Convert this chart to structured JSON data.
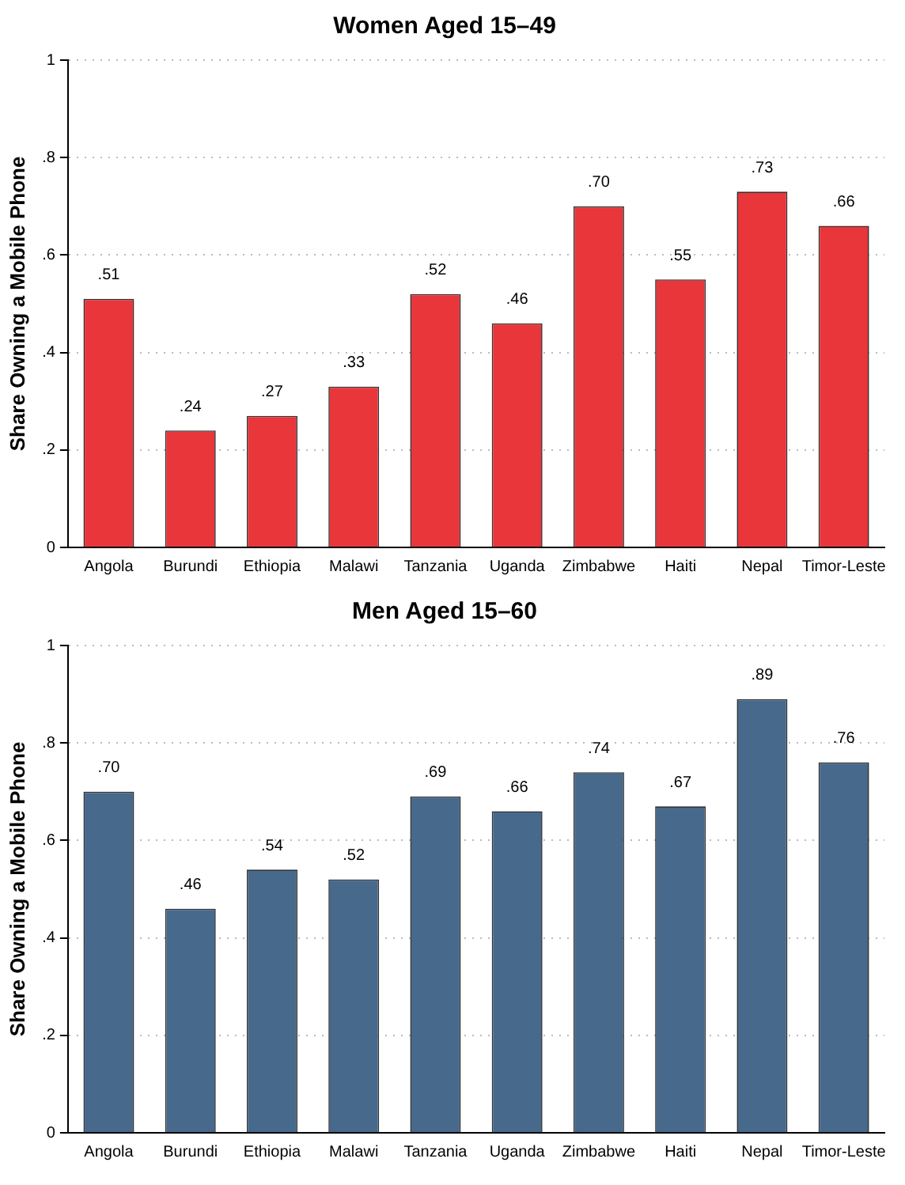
{
  "chart_data": [
    {
      "type": "bar",
      "title": "Women Aged 15–49",
      "ylabel": "Share Owning a Mobile Phone",
      "categories": [
        "Angola",
        "Burundi",
        "Ethiopia",
        "Malawi",
        "Tanzania",
        "Uganda",
        "Zimbabwe",
        "Haiti",
        "Nepal",
        "Timor-Leste"
      ],
      "color": "#e8363b",
      "values": [
        0.51,
        0.24,
        0.27,
        0.33,
        0.52,
        0.46,
        0.7,
        0.55,
        0.73,
        0.66
      ],
      "value_labels": [
        ".51",
        ".24",
        ".27",
        ".33",
        ".52",
        ".46",
        ".70",
        ".55",
        ".73",
        ".66"
      ],
      "ylim": [
        0,
        1
      ],
      "yticks": [
        {
          "value": 0,
          "label": "0"
        },
        {
          "value": 0.2,
          "label": ".2"
        },
        {
          "value": 0.4,
          "label": ".4"
        },
        {
          "value": 0.6,
          "label": ".6"
        },
        {
          "value": 0.8,
          "label": ".8"
        },
        {
          "value": 1,
          "label": "1"
        }
      ],
      "grid": "y"
    },
    {
      "type": "bar",
      "title": "Men Aged 15–60",
      "ylabel": "Share Owning a Mobile Phone",
      "categories": [
        "Angola",
        "Burundi",
        "Ethiopia",
        "Malawi",
        "Tanzania",
        "Uganda",
        "Zimbabwe",
        "Haiti",
        "Nepal",
        "Timor-Leste"
      ],
      "color": "#46698c",
      "values": [
        0.7,
        0.46,
        0.54,
        0.52,
        0.69,
        0.66,
        0.74,
        0.67,
        0.89,
        0.76
      ],
      "value_labels": [
        ".70",
        ".46",
        ".54",
        ".52",
        ".69",
        ".66",
        ".74",
        ".67",
        ".89",
        ".76"
      ],
      "ylim": [
        0,
        1
      ],
      "yticks": [
        {
          "value": 0,
          "label": "0"
        },
        {
          "value": 0.2,
          "label": ".2"
        },
        {
          "value": 0.4,
          "label": ".4"
        },
        {
          "value": 0.6,
          "label": ".6"
        },
        {
          "value": 0.8,
          "label": ".8"
        },
        {
          "value": 1,
          "label": "1"
        }
      ],
      "grid": "y"
    }
  ]
}
